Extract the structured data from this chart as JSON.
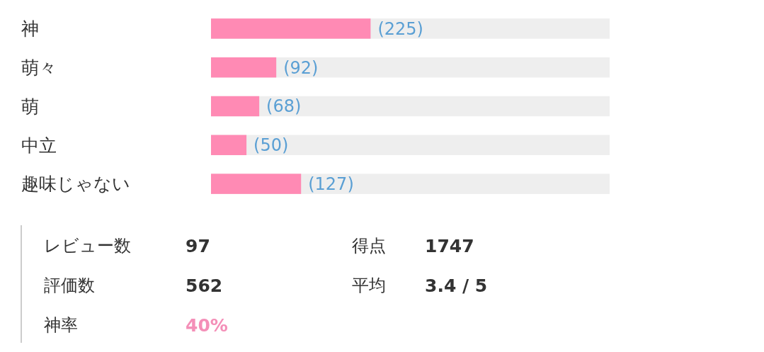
{
  "chart_data": [
    {
      "type": "bar",
      "orientation": "horizontal",
      "categories": [
        "神",
        "萌々",
        "萌",
        "中立",
        "趣味じゃない"
      ],
      "values": [
        225,
        92,
        68,
        50,
        127
      ],
      "color": "#ff8ab4",
      "value_labels": [
        "(225)",
        "(92)",
        "(68)",
        "(50)",
        "(127)"
      ],
      "xlim": [
        0,
        562
      ]
    },
    {
      "type": "other",
      "annotations": [
        "レビュー数",
        "97",
        "得点",
        "1747",
        "評価数",
        "562",
        "平均",
        "3.4 / 5",
        "神率",
        "40%"
      ]
    }
  ]
}
